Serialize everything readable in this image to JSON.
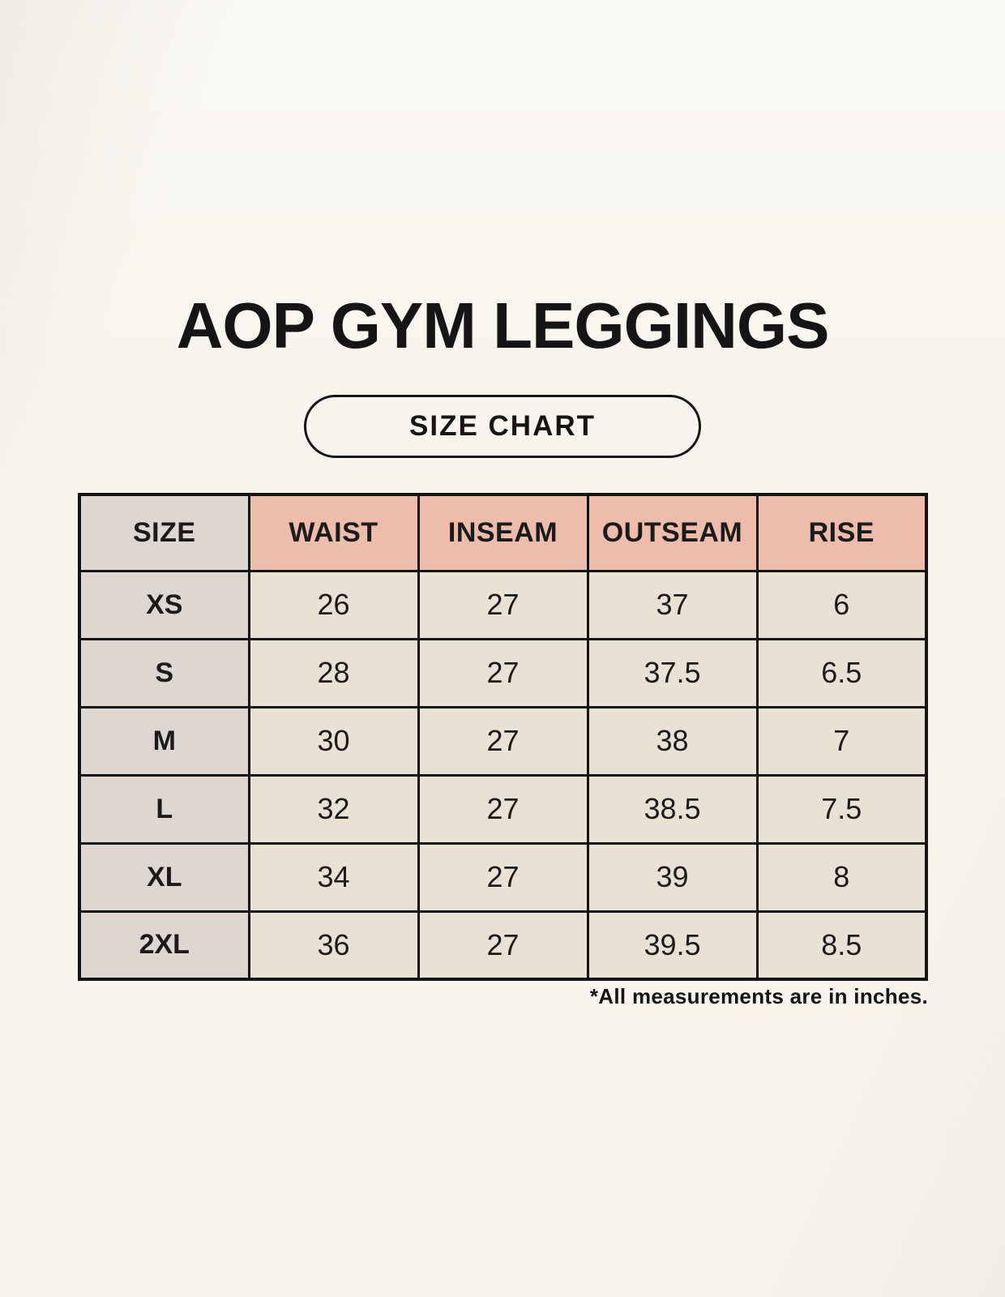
{
  "header": {
    "title": "AOP GYM LEGGINGS",
    "badge_label": "SIZE CHART"
  },
  "size_table": {
    "columns": [
      "SIZE",
      "WAIST",
      "INSEAM",
      "OUTSEAM",
      "RISE"
    ],
    "rows": [
      [
        "XS",
        "26",
        "27",
        "37",
        "6"
      ],
      [
        "S",
        "28",
        "27",
        "37.5",
        "6.5"
      ],
      [
        "M",
        "30",
        "27",
        "38",
        "7"
      ],
      [
        "L",
        "32",
        "27",
        "38.5",
        "7.5"
      ],
      [
        "XL",
        "34",
        "27",
        "39",
        "8"
      ],
      [
        "2XL",
        "36",
        "27",
        "39.5",
        "8.5"
      ]
    ],
    "footnote": "*All measurements are in inches."
  },
  "colors": {
    "background": "#f8f5ee",
    "accent_header": "#edbcab",
    "size_column": "#ddd6d1",
    "data_cell": "#e9e2d4",
    "border": "#141414",
    "text": "#1b1b1b"
  }
}
